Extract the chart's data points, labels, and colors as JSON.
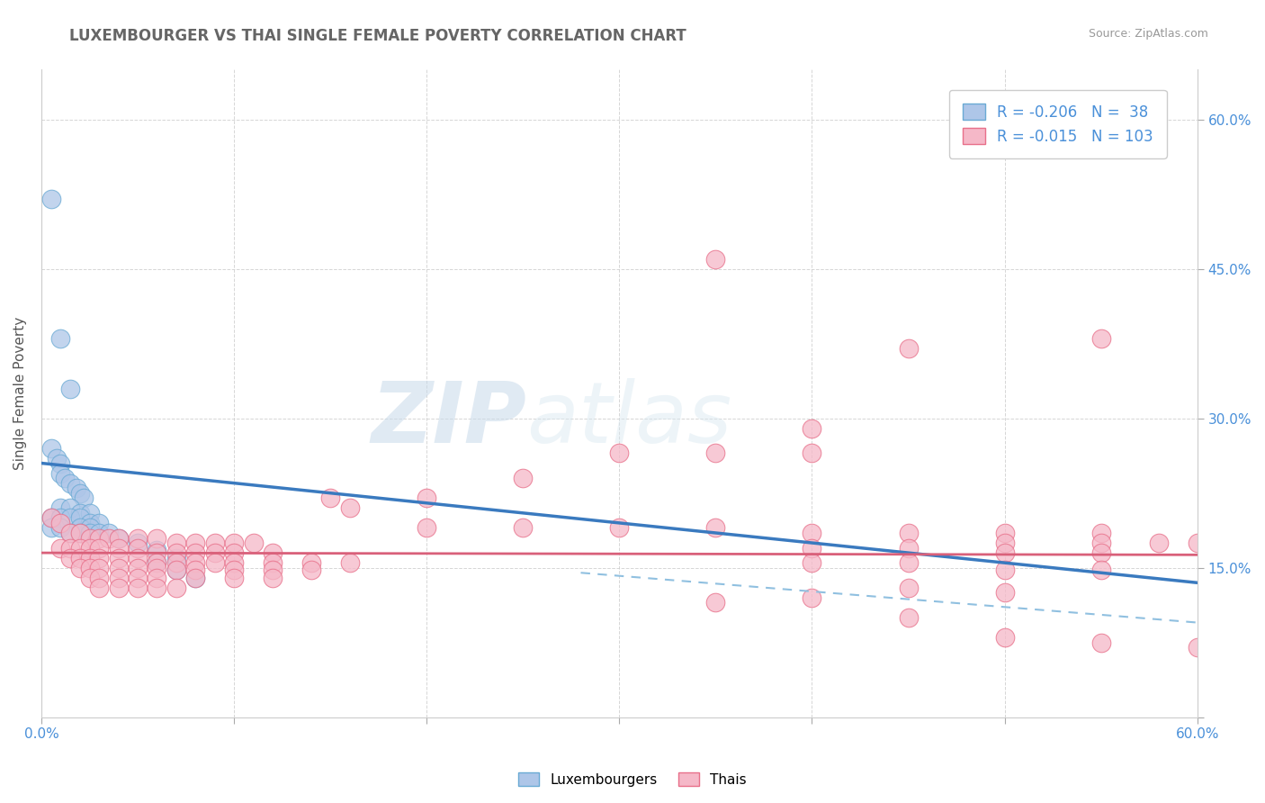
{
  "title": "LUXEMBOURGER VS THAI SINGLE FEMALE POVERTY CORRELATION CHART",
  "source_text": "Source: ZipAtlas.com",
  "ylabel": "Single Female Poverty",
  "xlim": [
    0.0,
    0.6
  ],
  "ylim": [
    0.0,
    0.65
  ],
  "xticks": [
    0.0,
    0.1,
    0.2,
    0.3,
    0.4,
    0.5,
    0.6
  ],
  "yticks": [
    0.0,
    0.15,
    0.3,
    0.45,
    0.6
  ],
  "xtick_labels": [
    "0.0%",
    "",
    "",
    "",
    "",
    "",
    "60.0%"
  ],
  "ytick_labels_right": [
    "",
    "15.0%",
    "30.0%",
    "45.0%",
    "60.0%"
  ],
  "lux_R": -0.206,
  "lux_N": 38,
  "thai_R": -0.015,
  "thai_N": 103,
  "lux_color": "#aec6e8",
  "thai_color": "#f5b8c8",
  "lux_edge_color": "#6aaad4",
  "thai_edge_color": "#e8708a",
  "lux_line_color": "#3a7abf",
  "thai_line_solid_color": "#d9607a",
  "thai_line_dash_color": "#90c0e0",
  "background_color": "#ffffff",
  "grid_color": "#cccccc",
  "title_color": "#666666",
  "title_fontsize": 12,
  "axis_label_color": "#4a90d9",
  "watermark_color": "#dce8f0",
  "lux_scatter": [
    [
      0.005,
      0.52
    ],
    [
      0.01,
      0.38
    ],
    [
      0.015,
      0.33
    ],
    [
      0.005,
      0.27
    ],
    [
      0.008,
      0.26
    ],
    [
      0.01,
      0.255
    ],
    [
      0.01,
      0.245
    ],
    [
      0.012,
      0.24
    ],
    [
      0.015,
      0.235
    ],
    [
      0.018,
      0.23
    ],
    [
      0.02,
      0.225
    ],
    [
      0.022,
      0.22
    ],
    [
      0.01,
      0.21
    ],
    [
      0.015,
      0.21
    ],
    [
      0.02,
      0.205
    ],
    [
      0.025,
      0.205
    ],
    [
      0.005,
      0.2
    ],
    [
      0.01,
      0.2
    ],
    [
      0.015,
      0.2
    ],
    [
      0.02,
      0.2
    ],
    [
      0.025,
      0.195
    ],
    [
      0.03,
      0.195
    ],
    [
      0.005,
      0.19
    ],
    [
      0.01,
      0.19
    ],
    [
      0.02,
      0.19
    ],
    [
      0.025,
      0.19
    ],
    [
      0.015,
      0.185
    ],
    [
      0.02,
      0.185
    ],
    [
      0.025,
      0.185
    ],
    [
      0.03,
      0.185
    ],
    [
      0.035,
      0.185
    ],
    [
      0.04,
      0.18
    ],
    [
      0.05,
      0.175
    ],
    [
      0.06,
      0.168
    ],
    [
      0.07,
      0.16
    ],
    [
      0.06,
      0.155
    ],
    [
      0.07,
      0.148
    ],
    [
      0.08,
      0.14
    ]
  ],
  "thai_scatter": [
    [
      0.005,
      0.2
    ],
    [
      0.01,
      0.195
    ],
    [
      0.015,
      0.185
    ],
    [
      0.02,
      0.185
    ],
    [
      0.025,
      0.18
    ],
    [
      0.03,
      0.18
    ],
    [
      0.035,
      0.18
    ],
    [
      0.04,
      0.18
    ],
    [
      0.05,
      0.18
    ],
    [
      0.06,
      0.18
    ],
    [
      0.07,
      0.175
    ],
    [
      0.08,
      0.175
    ],
    [
      0.09,
      0.175
    ],
    [
      0.1,
      0.175
    ],
    [
      0.11,
      0.175
    ],
    [
      0.01,
      0.17
    ],
    [
      0.015,
      0.17
    ],
    [
      0.02,
      0.17
    ],
    [
      0.025,
      0.17
    ],
    [
      0.03,
      0.17
    ],
    [
      0.04,
      0.17
    ],
    [
      0.05,
      0.17
    ],
    [
      0.06,
      0.165
    ],
    [
      0.07,
      0.165
    ],
    [
      0.08,
      0.165
    ],
    [
      0.09,
      0.165
    ],
    [
      0.1,
      0.165
    ],
    [
      0.12,
      0.165
    ],
    [
      0.015,
      0.16
    ],
    [
      0.02,
      0.16
    ],
    [
      0.025,
      0.16
    ],
    [
      0.03,
      0.16
    ],
    [
      0.04,
      0.16
    ],
    [
      0.05,
      0.16
    ],
    [
      0.06,
      0.155
    ],
    [
      0.07,
      0.155
    ],
    [
      0.08,
      0.155
    ],
    [
      0.09,
      0.155
    ],
    [
      0.1,
      0.155
    ],
    [
      0.12,
      0.155
    ],
    [
      0.14,
      0.155
    ],
    [
      0.16,
      0.155
    ],
    [
      0.02,
      0.15
    ],
    [
      0.025,
      0.15
    ],
    [
      0.03,
      0.15
    ],
    [
      0.04,
      0.15
    ],
    [
      0.05,
      0.15
    ],
    [
      0.06,
      0.15
    ],
    [
      0.07,
      0.148
    ],
    [
      0.08,
      0.148
    ],
    [
      0.1,
      0.148
    ],
    [
      0.12,
      0.148
    ],
    [
      0.14,
      0.148
    ],
    [
      0.025,
      0.14
    ],
    [
      0.03,
      0.14
    ],
    [
      0.04,
      0.14
    ],
    [
      0.05,
      0.14
    ],
    [
      0.06,
      0.14
    ],
    [
      0.08,
      0.14
    ],
    [
      0.1,
      0.14
    ],
    [
      0.12,
      0.14
    ],
    [
      0.03,
      0.13
    ],
    [
      0.04,
      0.13
    ],
    [
      0.05,
      0.13
    ],
    [
      0.06,
      0.13
    ],
    [
      0.07,
      0.13
    ],
    [
      0.35,
      0.46
    ],
    [
      0.3,
      0.265
    ],
    [
      0.35,
      0.265
    ],
    [
      0.4,
      0.265
    ],
    [
      0.25,
      0.24
    ],
    [
      0.2,
      0.22
    ],
    [
      0.15,
      0.22
    ],
    [
      0.16,
      0.21
    ],
    [
      0.2,
      0.19
    ],
    [
      0.25,
      0.19
    ],
    [
      0.3,
      0.19
    ],
    [
      0.35,
      0.19
    ],
    [
      0.4,
      0.185
    ],
    [
      0.45,
      0.185
    ],
    [
      0.5,
      0.185
    ],
    [
      0.55,
      0.185
    ],
    [
      0.55,
      0.38
    ],
    [
      0.45,
      0.37
    ],
    [
      0.4,
      0.29
    ],
    [
      0.5,
      0.175
    ],
    [
      0.55,
      0.175
    ],
    [
      0.58,
      0.175
    ],
    [
      0.6,
      0.175
    ],
    [
      0.4,
      0.17
    ],
    [
      0.45,
      0.17
    ],
    [
      0.5,
      0.165
    ],
    [
      0.55,
      0.165
    ],
    [
      0.4,
      0.155
    ],
    [
      0.45,
      0.155
    ],
    [
      0.5,
      0.148
    ],
    [
      0.55,
      0.148
    ],
    [
      0.45,
      0.13
    ],
    [
      0.5,
      0.125
    ],
    [
      0.4,
      0.12
    ],
    [
      0.35,
      0.115
    ],
    [
      0.45,
      0.1
    ],
    [
      0.5,
      0.08
    ],
    [
      0.55,
      0.075
    ],
    [
      0.6,
      0.07
    ]
  ],
  "lux_trendline": [
    [
      0.0,
      0.255
    ],
    [
      0.6,
      0.135
    ]
  ],
  "thai_trendline_solid": [
    [
      0.0,
      0.165
    ],
    [
      0.6,
      0.163
    ]
  ],
  "thai_trendline_dashed": [
    [
      0.28,
      0.145
    ],
    [
      0.6,
      0.095
    ]
  ]
}
